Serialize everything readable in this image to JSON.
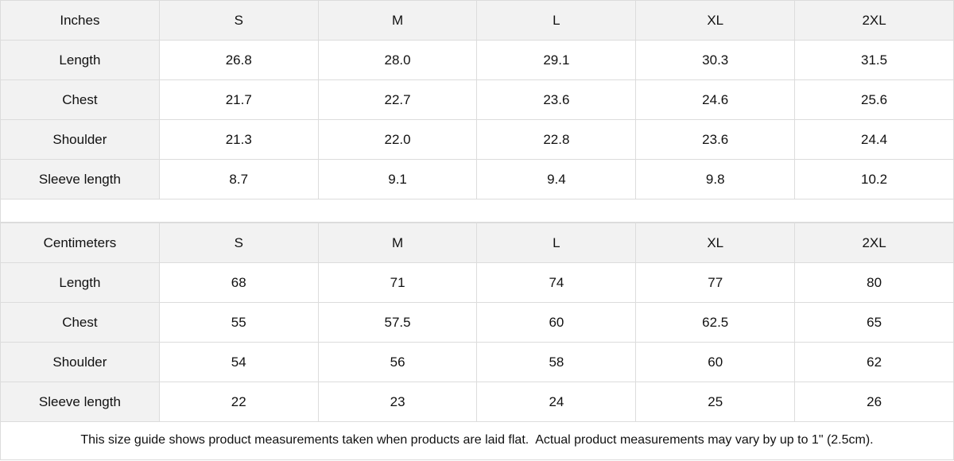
{
  "tables": [
    {
      "unit": "Inches",
      "sizes": [
        "S",
        "M",
        "L",
        "XL",
        "2XL"
      ],
      "rows": [
        {
          "label": "Length",
          "values": [
            "26.8",
            "28.0",
            "29.1",
            "30.3",
            "31.5"
          ]
        },
        {
          "label": "Chest",
          "values": [
            "21.7",
            "22.7",
            "23.6",
            "24.6",
            "25.6"
          ]
        },
        {
          "label": "Shoulder",
          "values": [
            "21.3",
            "22.0",
            "22.8",
            "23.6",
            "24.4"
          ]
        },
        {
          "label": "Sleeve length",
          "values": [
            "8.7",
            "9.1",
            "9.4",
            "9.8",
            "10.2"
          ]
        }
      ]
    },
    {
      "unit": "Centimeters",
      "sizes": [
        "S",
        "M",
        "L",
        "XL",
        "2XL"
      ],
      "rows": [
        {
          "label": "Length",
          "values": [
            "68",
            "71",
            "74",
            "77",
            "80"
          ]
        },
        {
          "label": "Chest",
          "values": [
            "55",
            "57.5",
            "60",
            "62.5",
            "65"
          ]
        },
        {
          "label": "Shoulder",
          "values": [
            "54",
            "56",
            "58",
            "60",
            "62"
          ]
        },
        {
          "label": "Sleeve length",
          "values": [
            "22",
            "23",
            "24",
            "25",
            "26"
          ]
        }
      ]
    }
  ],
  "note": "This size guide shows product measurements taken when products are laid flat.  Actual product measurements may vary by up to 1\" (2.5cm)."
}
